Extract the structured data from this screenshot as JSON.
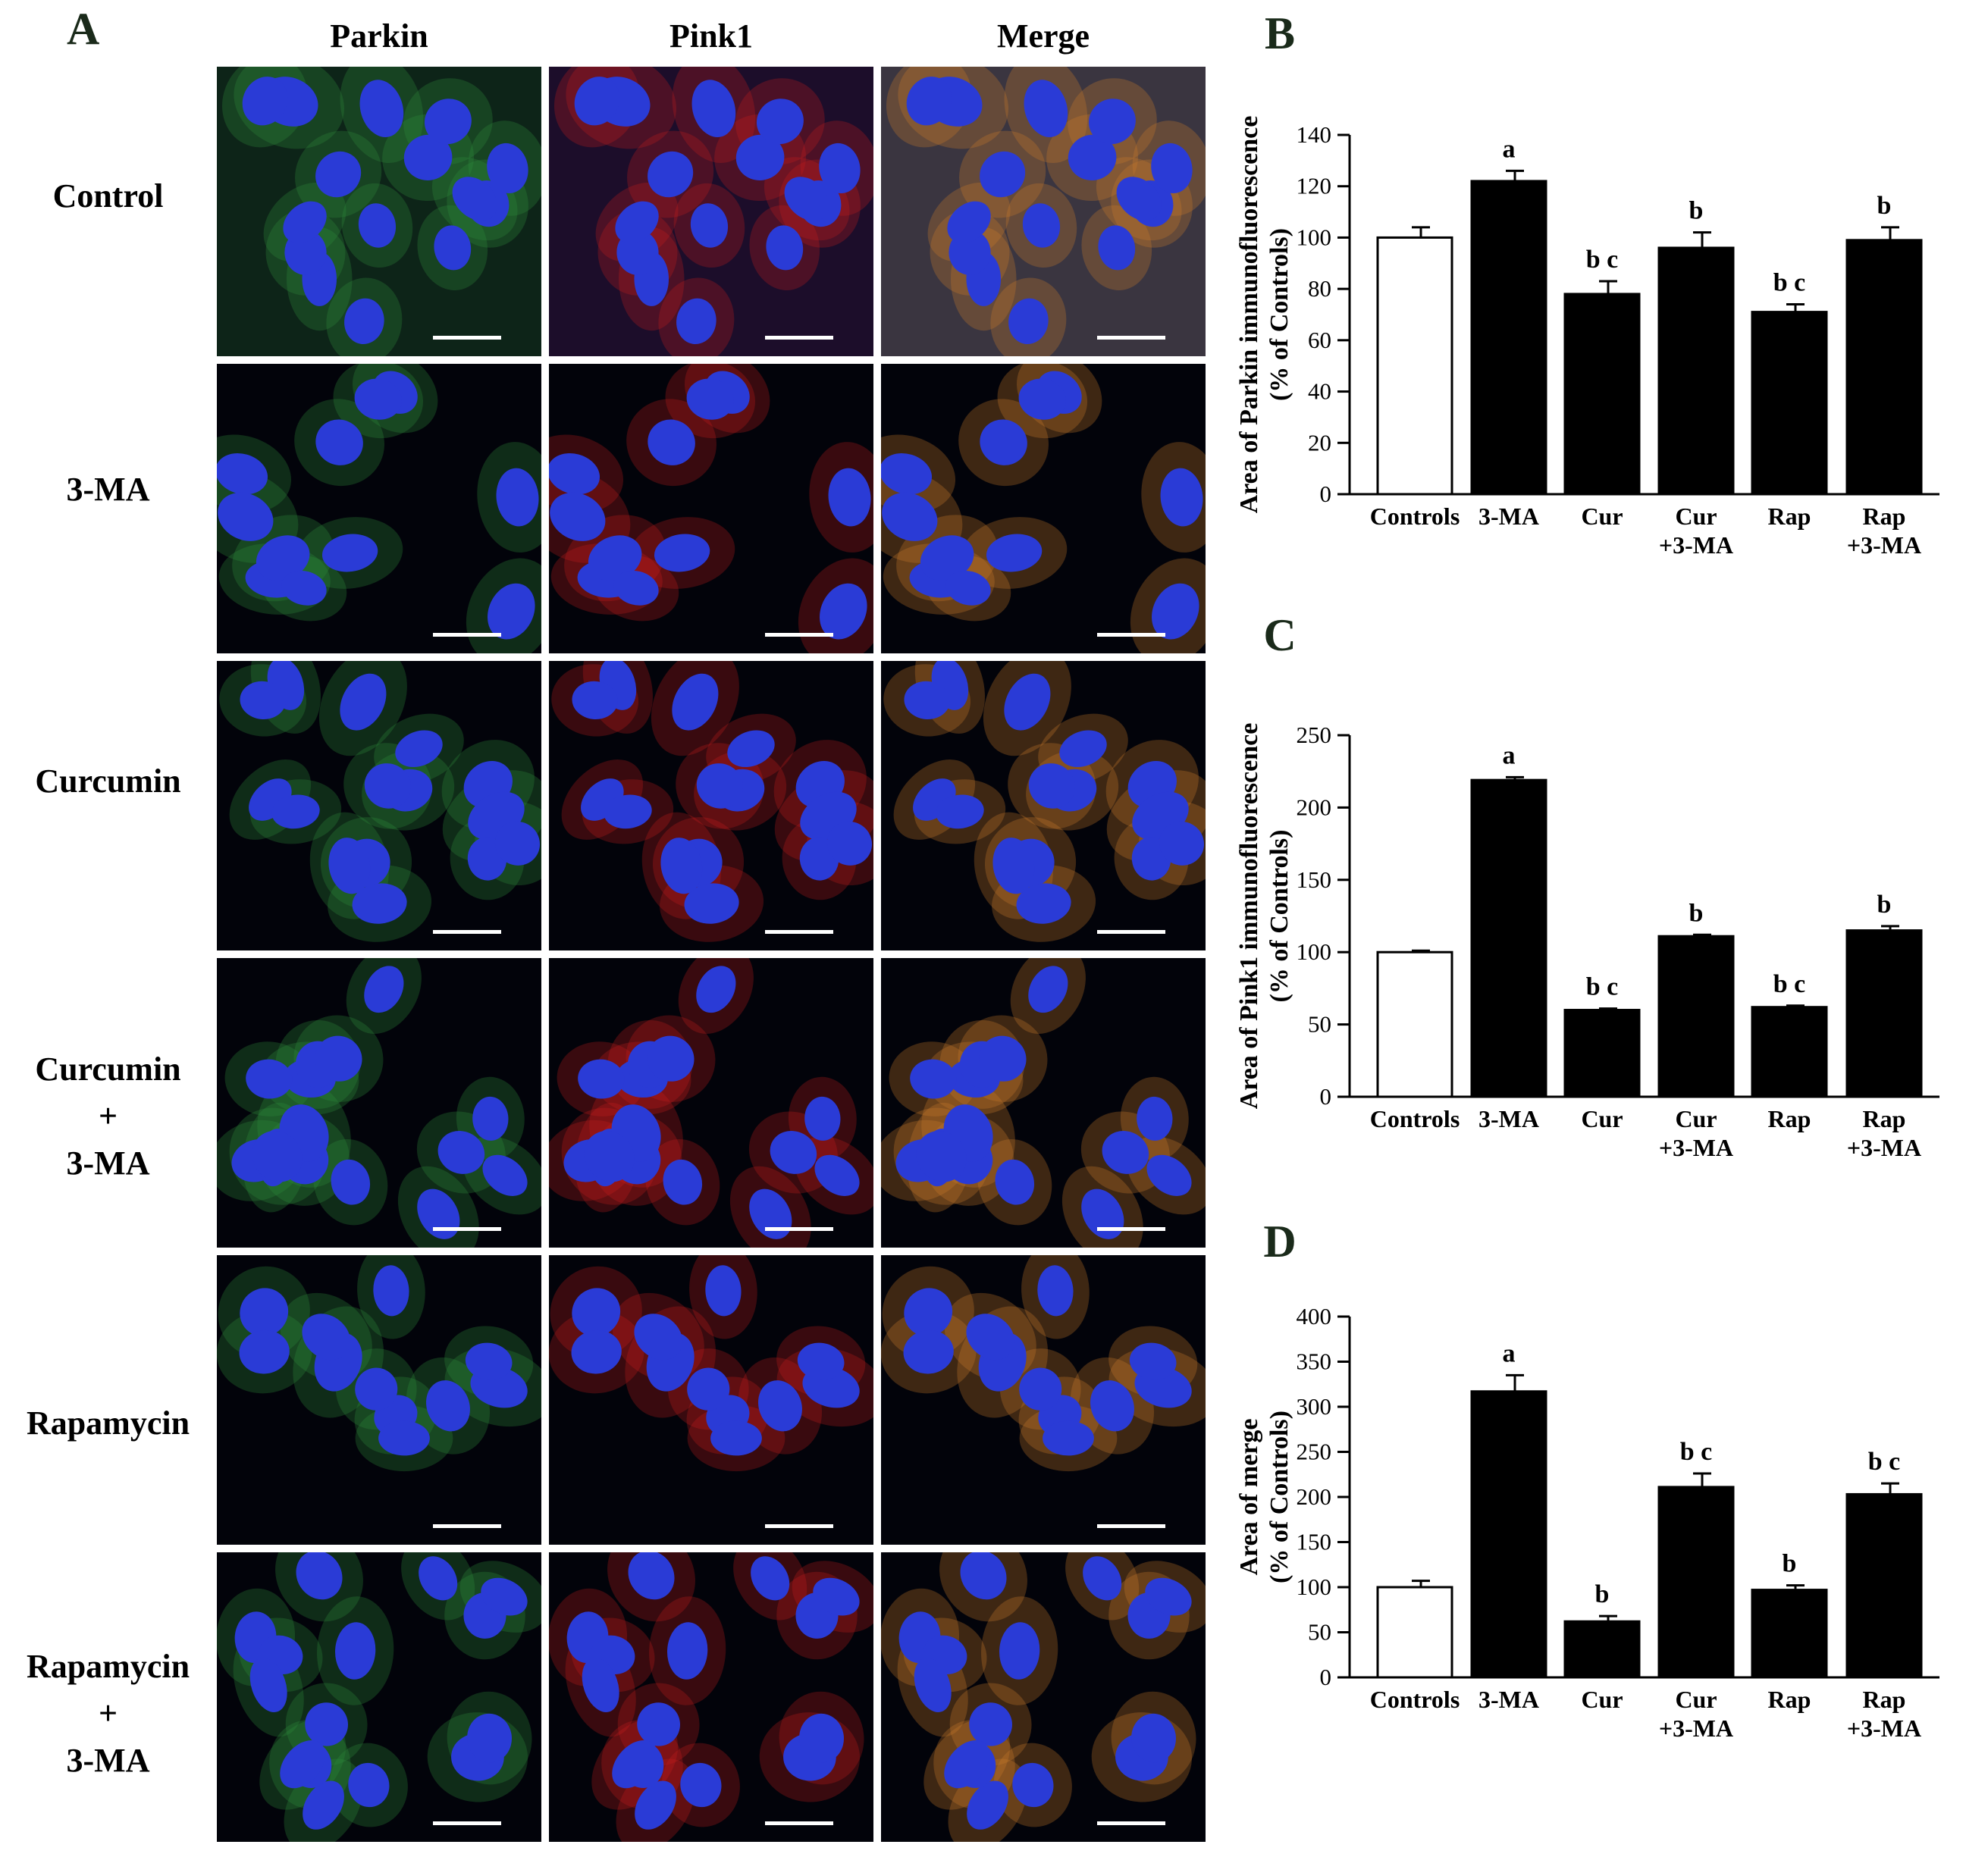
{
  "panel_a": {
    "letter": "A",
    "columns": [
      "Parkin",
      "Pink1",
      "Merge"
    ],
    "rows": [
      [
        "Control"
      ],
      [
        "3-MA"
      ],
      [
        "Curcumin"
      ],
      [
        "Curcumin",
        "+",
        "3-MA"
      ],
      [
        "Rapamycin"
      ],
      [
        "Rapamycin",
        "+",
        "3-MA"
      ]
    ]
  },
  "colors": {
    "nucleus": "#2a3bd6",
    "parkin": "#2f8a3a",
    "pink1": "#c81e1e",
    "merge": "#c9792a",
    "bar_control": "#ffffff",
    "bar_treated": "#000000"
  },
  "chart_data": [
    {
      "type": "bar",
      "panel": "B",
      "ylabel": "Area of Parkin immunofluorescence",
      "ylabel2": "(% of Controls)",
      "categories": [
        [
          "Controls"
        ],
        [
          "3-MA"
        ],
        [
          "Cur"
        ],
        [
          "Cur",
          "+3-MA"
        ],
        [
          "Rap"
        ],
        [
          "Rap",
          "+3-MA"
        ]
      ],
      "values": [
        100,
        122,
        78,
        96,
        71,
        99
      ],
      "errors": [
        4,
        4,
        5,
        6,
        3,
        5
      ],
      "annotations": [
        "",
        "a",
        "b c",
        "b",
        "b c",
        "b"
      ],
      "ylim": [
        0,
        140
      ],
      "yticks": [
        0,
        20,
        40,
        60,
        80,
        100,
        120,
        140
      ]
    },
    {
      "type": "bar",
      "panel": "C",
      "ylabel": "Area of Pink1 immunofluorescence",
      "ylabel2": "(% of Controls)",
      "categories": [
        [
          "Controls"
        ],
        [
          "3-MA"
        ],
        [
          "Cur"
        ],
        [
          "Cur",
          "+3-MA"
        ],
        [
          "Rap"
        ],
        [
          "Rap",
          "+3-MA"
        ]
      ],
      "values": [
        100,
        219,
        60,
        111,
        62,
        115
      ],
      "errors": [
        1,
        2,
        1,
        1,
        1,
        3
      ],
      "annotations": [
        "",
        "a",
        "b c",
        "b",
        "b c",
        "b"
      ],
      "ylim": [
        0,
        250
      ],
      "yticks": [
        0,
        50,
        100,
        150,
        200,
        250
      ]
    },
    {
      "type": "bar",
      "panel": "D",
      "ylabel": "Area of merge",
      "ylabel2": "(% of Controls)",
      "categories": [
        [
          "Controls"
        ],
        [
          "3-MA"
        ],
        [
          "Cur"
        ],
        [
          "Cur",
          "+3-MA"
        ],
        [
          "Rap"
        ],
        [
          "Rap",
          "+3-MA"
        ]
      ],
      "values": [
        100,
        317,
        62,
        211,
        97,
        203
      ],
      "errors": [
        7,
        18,
        6,
        15,
        5,
        12
      ],
      "annotations": [
        "",
        "a",
        "b",
        "b c",
        "b",
        "b c"
      ],
      "ylim": [
        0,
        400
      ],
      "yticks": [
        0,
        50,
        100,
        150,
        200,
        250,
        300,
        350,
        400
      ]
    }
  ]
}
